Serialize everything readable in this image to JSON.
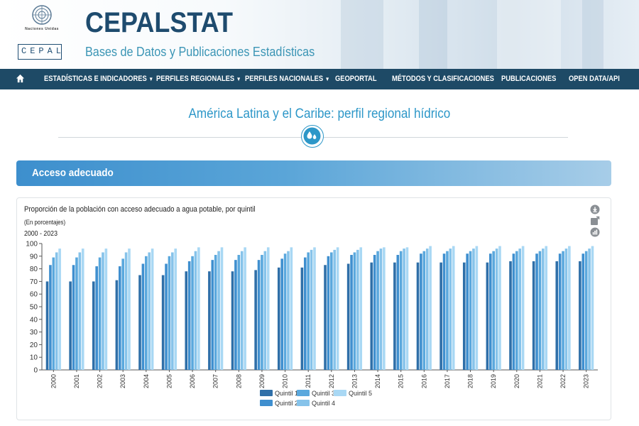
{
  "header": {
    "org_name": "Naciones Unidas",
    "org_acronym": "CEPAL",
    "title": "CEPALSTAT",
    "subtitle": "Bases de Datos y Publicaciones Estadísticas"
  },
  "nav": {
    "items": [
      {
        "label": "ESTADÍSTICAS E INDICADORES",
        "caret": "▼"
      },
      {
        "label": "PERFILES REGIONALES",
        "caret": "▼"
      },
      {
        "label": "PERFILES NACIONALES",
        "caret": "▼"
      },
      {
        "label": "GEOPORTAL",
        "caret": ""
      },
      {
        "label": "MÉTODOS Y CLASIFICACIONES",
        "caret": ""
      },
      {
        "label": "PUBLICACIONES",
        "caret": ""
      },
      {
        "label": "OPEN DATA/API",
        "caret": ""
      }
    ]
  },
  "page": {
    "title": "América Latina y el Caribe: perfil regional hídrico"
  },
  "section": {
    "title": "Acceso adecuado"
  },
  "chart_data": {
    "type": "bar",
    "title": "Proporción de la población con acceso adecuado a agua potable, por quintil",
    "subtitle": "(En porcentajes)",
    "period": "2000 - 2023",
    "ylim": [
      0,
      100
    ],
    "yticks": [
      0,
      10,
      20,
      30,
      40,
      50,
      60,
      70,
      80,
      90,
      100
    ],
    "grid": false,
    "legend": "bottom",
    "categories": [
      "2000",
      "2001",
      "2002",
      "2003",
      "2004",
      "2005",
      "2006",
      "2007",
      "2008",
      "2009",
      "2010",
      "2011",
      "2012",
      "2013",
      "2014",
      "2015",
      "2016",
      "2017",
      "2018",
      "2019",
      "2020",
      "2021",
      "2022",
      "2023"
    ],
    "series": [
      {
        "name": "Quintil 1",
        "color": "#2f6fa8",
        "values": [
          70,
          70,
          70,
          71,
          75,
          75,
          78,
          78,
          78,
          79,
          81,
          81,
          83,
          84,
          85,
          85,
          85,
          85,
          85,
          85,
          86,
          86,
          86,
          86
        ]
      },
      {
        "name": "Quintil 2",
        "color": "#3f8fcf",
        "values": [
          83,
          83,
          82,
          82,
          84,
          84,
          86,
          87,
          87,
          87,
          88,
          89,
          90,
          91,
          91,
          91,
          92,
          92,
          92,
          92,
          92,
          92,
          92,
          92
        ]
      },
      {
        "name": "Quintil 3",
        "color": "#5aa8dd",
        "values": [
          89,
          89,
          89,
          88,
          90,
          90,
          90,
          91,
          91,
          91,
          92,
          93,
          93,
          93,
          94,
          94,
          94,
          94,
          94,
          94,
          94,
          94,
          94,
          94
        ]
      },
      {
        "name": "Quintil 4",
        "color": "#86c3ea",
        "values": [
          93,
          93,
          93,
          93,
          93,
          93,
          94,
          94,
          94,
          94,
          94,
          95,
          95,
          95,
          96,
          96,
          96,
          96,
          96,
          96,
          96,
          96,
          96,
          96
        ]
      },
      {
        "name": "Quintil 5",
        "color": "#a9d8f4",
        "values": [
          96,
          96,
          96,
          96,
          96,
          96,
          97,
          97,
          97,
          97,
          97,
          97,
          97,
          97,
          97,
          97,
          98,
          98,
          98,
          98,
          98,
          98,
          98,
          98
        ]
      }
    ]
  }
}
